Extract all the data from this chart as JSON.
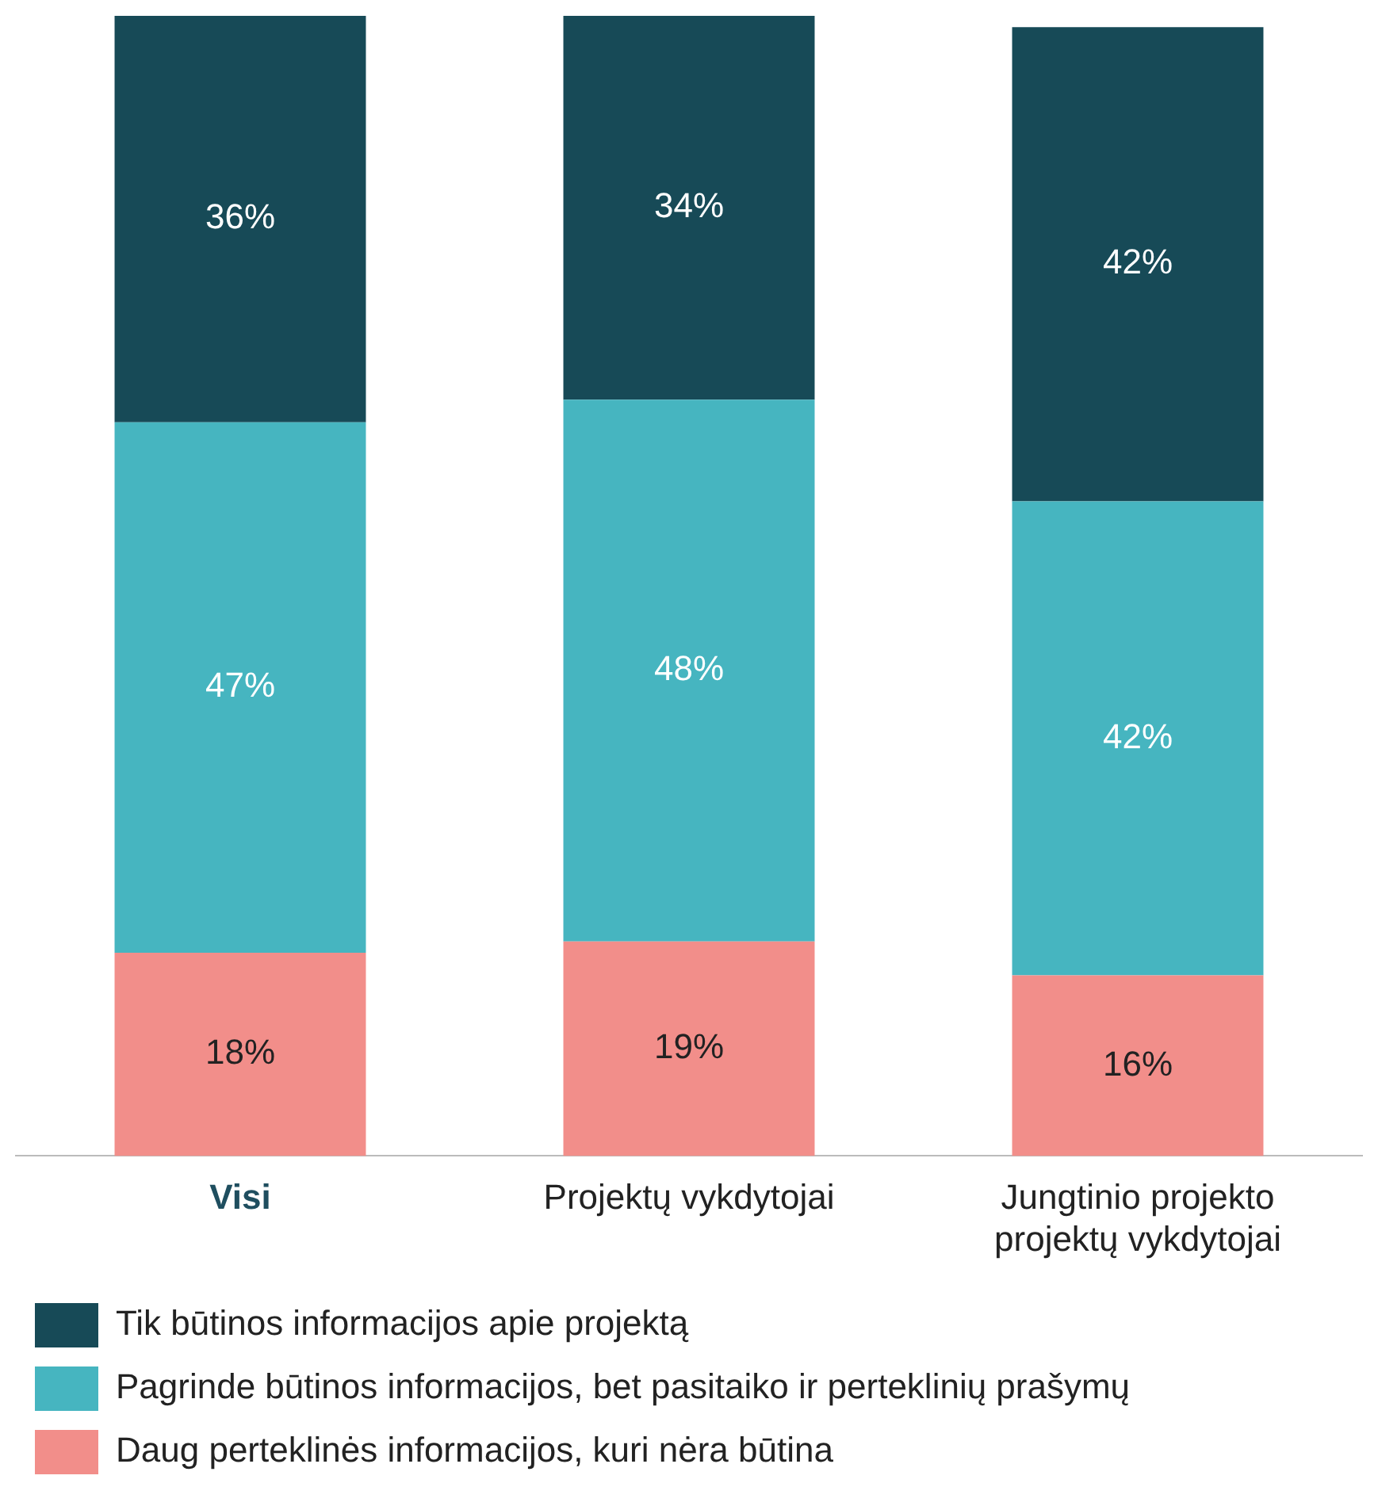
{
  "chart_data": {
    "type": "bar",
    "stacked": true,
    "categories": [
      "Visi",
      "Projektų vykdytojai",
      "Jungtinio projekto projektų vykdytojai"
    ],
    "series": [
      {
        "name": "Daug perteklinės informacijos, kuri nėra būtina",
        "color": "#f28e8a",
        "values": [
          18,
          19,
          16
        ],
        "value_labels": [
          "18%",
          "19%",
          "16%"
        ]
      },
      {
        "name": "Pagrinde būtinos informacijos, bet pasitaiko ir perteklinių prašymų",
        "color": "#46b5c0",
        "values": [
          47,
          48,
          42
        ],
        "value_labels": [
          "47%",
          "48%",
          "42%"
        ]
      },
      {
        "name": "Tik būtinos informacijos apie projektą",
        "color": "#174a57",
        "values": [
          36,
          34,
          42
        ],
        "value_labels": [
          "36%",
          "34%",
          "42%"
        ]
      }
    ],
    "legend": "bottom",
    "grid": false,
    "tick_labels": "x"
  }
}
